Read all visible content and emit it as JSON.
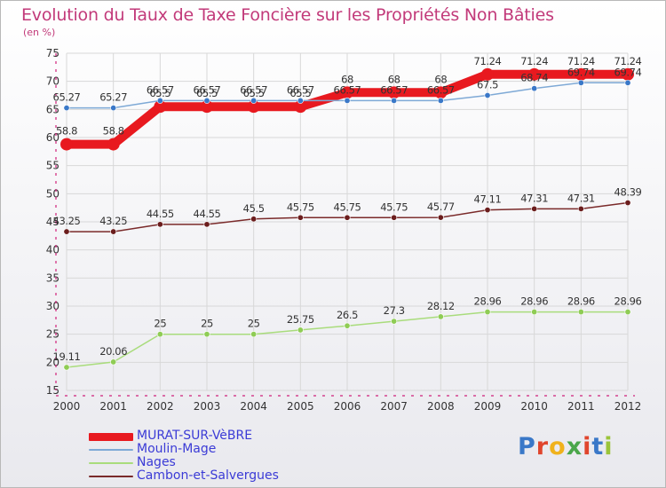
{
  "header": {
    "title": "Evolution du Taux de Taxe Foncière sur les Propriétés Non Bâties",
    "subtitle": "(en %)"
  },
  "logo": {
    "text": "Proxiti",
    "letter_colors": [
      "#3a78c8",
      "#e0452d",
      "#f0b21c",
      "#4aa64a",
      "#e0452d",
      "#3a78c8",
      "#9bc43a"
    ]
  },
  "colors": {
    "title": "#c23a7a",
    "axis": "#d0207a",
    "grid": "#d8d8d8",
    "legend_text": "#3b3bd6"
  },
  "chart_data": {
    "type": "line",
    "x": [
      "2000",
      "2001",
      "2002",
      "2003",
      "2004",
      "2005",
      "2006",
      "2007",
      "2008",
      "2009",
      "2010",
      "2011",
      "2012"
    ],
    "ylim": [
      15,
      75
    ],
    "yticks": [
      15,
      20,
      25,
      30,
      35,
      40,
      45,
      50,
      55,
      60,
      65,
      70,
      75
    ],
    "grid": true,
    "legend_position": "bottom-left",
    "series": [
      {
        "name": "MURAT-SUR-VèBRE",
        "color": "#e8191f",
        "marker_color": "#e8191f",
        "line_width": 10,
        "marker_radius": 7,
        "values": [
          58.8,
          58.8,
          65.5,
          65.5,
          65.5,
          65.5,
          68,
          68,
          68,
          71.24,
          71.24,
          71.24,
          71.24
        ],
        "labels": [
          "58.8",
          "58.8",
          "65.5",
          "65.5",
          "65.5",
          "65.5",
          "68",
          "68",
          "68",
          "71.24",
          "71.24",
          "71.24",
          "71.24"
        ]
      },
      {
        "name": "Moulin-Mage",
        "color": "#7ea9d6",
        "marker_color": "#3a78c8",
        "line_width": 1.5,
        "marker_radius": 3.2,
        "values": [
          65.27,
          65.27,
          66.57,
          66.57,
          66.57,
          66.57,
          66.57,
          66.57,
          66.57,
          67.5,
          68.74,
          69.74,
          69.74
        ],
        "labels": [
          "65.27",
          "65.27",
          "66.57",
          "66.57",
          "66.57",
          "66.57",
          "66.57",
          "66.57",
          "66.57",
          "67.5",
          "68.74",
          "69.74",
          "69.74"
        ]
      },
      {
        "name": "Nages",
        "color": "#a9dc7c",
        "marker_color": "#8fcc55",
        "line_width": 1.5,
        "marker_radius": 3.2,
        "values": [
          19.11,
          20.06,
          25,
          25,
          25,
          25.75,
          26.5,
          27.3,
          28.12,
          28.96,
          28.96,
          28.96,
          28.96
        ],
        "labels": [
          "19.11",
          "20.06",
          "25",
          "25",
          "25",
          "25.75",
          "26.5",
          "27.3",
          "28.12",
          "28.96",
          "28.96",
          "28.96",
          "28.96"
        ]
      },
      {
        "name": "Cambon-et-Salvergues",
        "color": "#7a2a2a",
        "marker_color": "#6b1d1d",
        "line_width": 1.5,
        "marker_radius": 3.2,
        "values": [
          43.25,
          43.25,
          44.55,
          44.55,
          45.5,
          45.75,
          45.75,
          45.75,
          45.77,
          47.11,
          47.31,
          47.31,
          48.39
        ],
        "labels": [
          "43.25",
          "43.25",
          "44.55",
          "44.55",
          "45.5",
          "45.75",
          "45.75",
          "45.75",
          "45.77",
          "47.11",
          "47.31",
          "47.31",
          "48.39"
        ]
      }
    ]
  }
}
